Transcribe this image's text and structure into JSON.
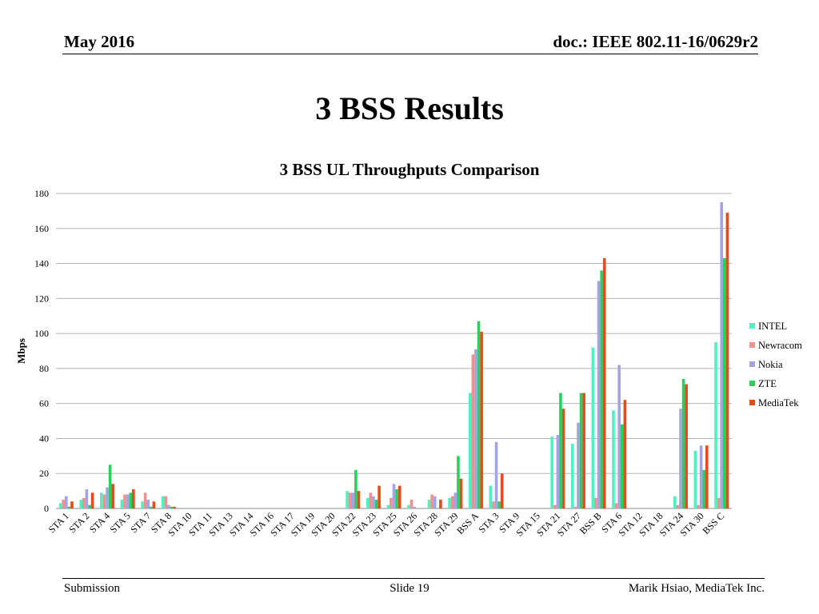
{
  "header": {
    "date": "May 2016",
    "doc": "doc.: IEEE 802.11-16/0629r2"
  },
  "slide": {
    "title": "3 BSS Results"
  },
  "footer": {
    "left": "Submission",
    "center": "Slide 19",
    "right": "Marik Hsiao, MediaTek Inc."
  },
  "chart_data": {
    "type": "bar",
    "title": "3 BSS UL Throughputs Comparison",
    "xlabel": "",
    "ylabel": "Mbps",
    "ylim": [
      0,
      180
    ],
    "yticks": [
      0,
      20,
      40,
      60,
      80,
      100,
      120,
      140,
      160,
      180
    ],
    "grid": true,
    "legend_position": "right",
    "categories": [
      "STA 1",
      "STA 2",
      "STA 4",
      "STA 5",
      "STA 7",
      "STA 8",
      "STA 10",
      "STA 11",
      "STA 13",
      "STA 14",
      "STA 16",
      "STA 17",
      "STA 19",
      "STA 20",
      "STA 22",
      "STA 23",
      "STA 25",
      "STA 26",
      "STA 28",
      "STA 29",
      "BSS A",
      "STA 3",
      "STA 9",
      "STA 15",
      "STA 21",
      "STA 27",
      "BSS B",
      "STA 6",
      "STA 12",
      "STA 18",
      "STA 24",
      "STA 30",
      "BSS C"
    ],
    "series": [
      {
        "name": "INTEL",
        "color": "#4cf2c0",
        "values": [
          3,
          5,
          9,
          5,
          4,
          7,
          0,
          0,
          0,
          0,
          0,
          0,
          0,
          0,
          10,
          6,
          2,
          2,
          5,
          6,
          66,
          13,
          0,
          0,
          41,
          37,
          92,
          56,
          0,
          0,
          7,
          33,
          95
        ]
      },
      {
        "name": "Newracom",
        "color": "#f09090",
        "values": [
          5,
          6,
          8,
          8,
          9,
          7,
          0,
          0,
          0,
          0,
          0,
          0,
          0,
          0,
          9,
          9,
          6,
          5,
          8,
          7,
          88,
          4,
          0,
          0,
          2,
          1,
          6,
          3,
          0,
          0,
          2,
          2,
          6
        ]
      },
      {
        "name": "Nokia",
        "color": "#a3a3e6",
        "values": [
          7,
          11,
          12,
          8,
          5,
          2,
          0,
          0,
          0,
          0,
          0,
          0,
          0,
          0,
          9,
          7,
          14,
          1,
          7,
          9,
          91,
          38,
          0,
          0,
          42,
          49,
          130,
          82,
          0,
          0,
          57,
          36,
          175
        ]
      },
      {
        "name": "ZTE",
        "color": "#22d45a",
        "values": [
          1,
          2,
          25,
          9,
          1,
          1,
          0,
          0,
          0,
          0,
          0,
          0,
          0,
          0,
          22,
          5,
          11,
          0,
          0,
          30,
          107,
          4,
          0,
          0,
          66,
          66,
          136,
          48,
          0,
          0,
          74,
          22,
          143
        ]
      },
      {
        "name": "MediaTek",
        "color": "#e04e1a",
        "values": [
          4,
          9,
          14,
          11,
          4,
          1,
          0,
          0,
          0,
          0,
          0,
          0,
          0,
          0,
          10,
          13,
          13,
          0,
          5,
          17,
          101,
          20,
          0,
          0,
          57,
          66,
          143,
          62,
          0,
          0,
          71,
          36,
          169
        ]
      }
    ]
  }
}
